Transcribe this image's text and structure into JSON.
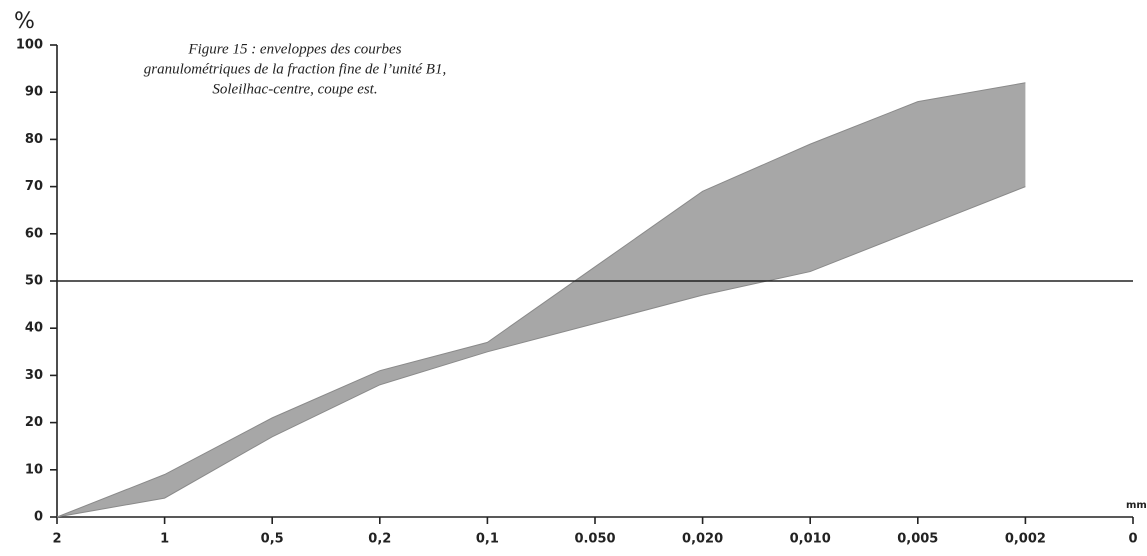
{
  "chart_data": {
    "type": "band",
    "title": [
      "Figure 15 : enveloppes des courbes",
      "granulométriques de la fraction fine de l’unité B1,",
      "Soleilhac-centre, coupe est."
    ],
    "y_label": "%",
    "x_label": "mm",
    "categories": [
      "2",
      "1",
      "0,5",
      "0,2",
      "0,1",
      "0.050",
      "0,020",
      "0,010",
      "0,005",
      "0,002",
      "0"
    ],
    "series": [
      {
        "name": "upper",
        "color": "#8a8a8a",
        "values": [
          0,
          9,
          21,
          31,
          37,
          53,
          69,
          79,
          88,
          92,
          null
        ]
      },
      {
        "name": "lower",
        "color": "#8a8a8a",
        "values": [
          0,
          4,
          17,
          28,
          35,
          41,
          47,
          52,
          61,
          70,
          null
        ]
      }
    ],
    "reference_line": 50,
    "ylim": [
      0,
      100
    ],
    "yticks": [
      0,
      10,
      20,
      30,
      40,
      50,
      60,
      70,
      80,
      90,
      100
    ]
  }
}
